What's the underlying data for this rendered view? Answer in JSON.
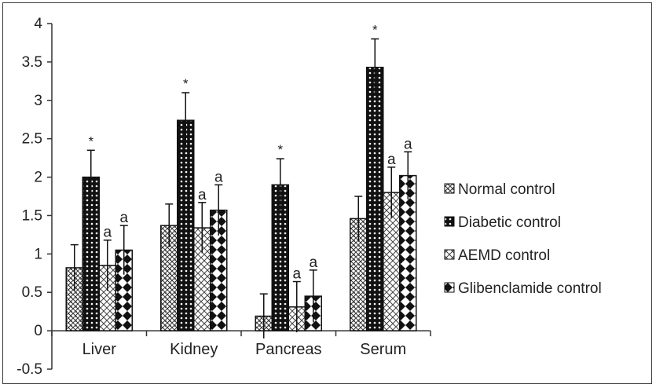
{
  "chart_data": {
    "type": "bar",
    "title": "",
    "xlabel": "",
    "ylabel": "",
    "categories": [
      "Liver",
      "Kidney",
      "Pancreas",
      "Serum"
    ],
    "ylim": [
      -0.5,
      4
    ],
    "yticks": [
      "4",
      "3.5",
      "3",
      "2.5",
      "2",
      "1.5",
      "1",
      "0.5",
      "0",
      "-0.5"
    ],
    "ytick_values": [
      4,
      3.5,
      3,
      2.5,
      2,
      1.5,
      1,
      0.5,
      0,
      -0.5
    ],
    "legend_position": "right",
    "series": [
      {
        "name": "Normal control",
        "pattern": "checker-light",
        "values": [
          0.82,
          1.37,
          0.19,
          1.46
        ],
        "errors": [
          0.3,
          0.28,
          0.29,
          0.29
        ],
        "annotations": [
          "",
          "",
          "",
          ""
        ]
      },
      {
        "name": "Diabetic control",
        "pattern": "dots-dark",
        "values": [
          2.0,
          2.74,
          1.9,
          3.43
        ],
        "errors": [
          0.35,
          0.36,
          0.34,
          0.37
        ],
        "annotations": [
          "*",
          "*",
          "*",
          "*"
        ]
      },
      {
        "name": "AEMD control",
        "pattern": "cross-light",
        "values": [
          0.85,
          1.34,
          0.31,
          1.8
        ],
        "errors": [
          0.33,
          0.33,
          0.33,
          0.33
        ],
        "annotations": [
          "a",
          "a",
          "a",
          "a"
        ]
      },
      {
        "name": "Glibenclamide control",
        "pattern": "diamond-dark",
        "values": [
          1.05,
          1.57,
          0.45,
          2.02
        ],
        "errors": [
          0.32,
          0.33,
          0.34,
          0.31
        ],
        "annotations": [
          "a",
          "a",
          "a",
          "a"
        ]
      }
    ],
    "colors": {
      "dark": "#111111",
      "light": "#ffffff",
      "axis": "#333333"
    }
  }
}
